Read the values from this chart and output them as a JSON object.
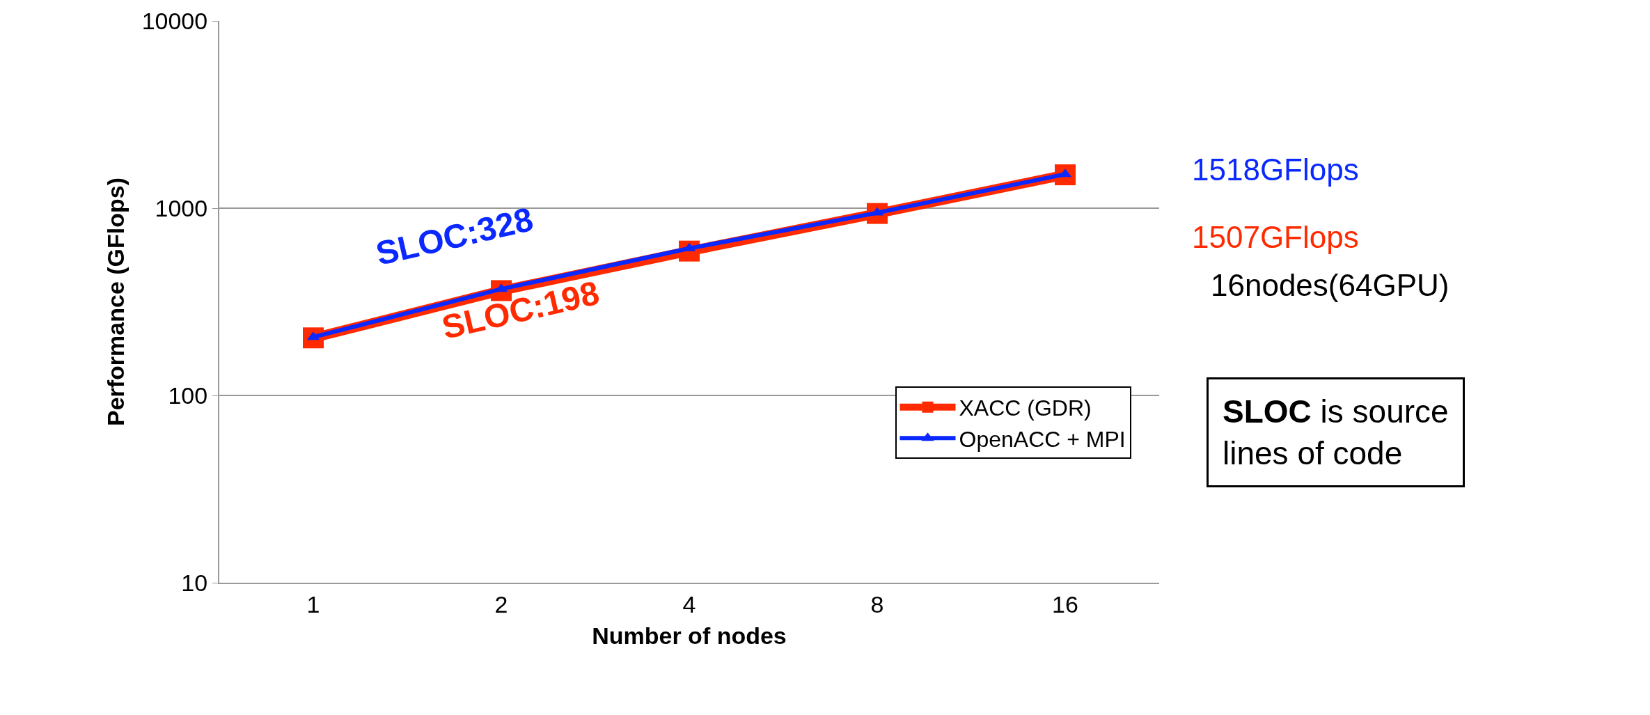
{
  "chart_data": {
    "type": "line",
    "xlabel": "Number of nodes",
    "ylabel": "Performance (GFlops)",
    "categories": [
      "1",
      "2",
      "4",
      "8",
      "16"
    ],
    "series": [
      {
        "name": "XACC (GDR)",
        "color": "#ff2a00",
        "marker": "square",
        "values": [
          203,
          363,
          590,
          937,
          1507
        ]
      },
      {
        "name": "OpenACC + MPI",
        "color": "#0a28ff",
        "marker": "triangle",
        "values": [
          205,
          370,
          610,
          945,
          1518
        ]
      }
    ],
    "log": true,
    "ylim": [
      10,
      10000
    ],
    "yticks": [
      10,
      100,
      1000,
      10000
    ],
    "grid": "y",
    "legend": "right",
    "line_style": "solid",
    "annotations": [
      "1518GFlops",
      "1507GFlops",
      "SLOC:328",
      "SLOC:198",
      "16nodes(64GPU)",
      "SLOC is source lines of code"
    ]
  }
}
